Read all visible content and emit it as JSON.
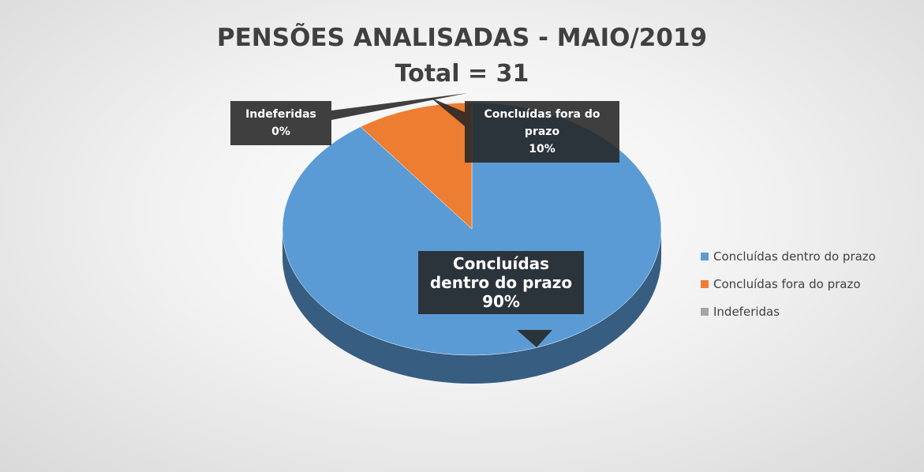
{
  "chart_data": {
    "type": "pie",
    "title": "PENSÕES ANALISADAS - MAIO/2019",
    "subtitle": "Total = 31",
    "categories": [
      "Concluídas dentro do prazo",
      "Concluídas  fora do prazo",
      "Indeferidas"
    ],
    "values": [
      90,
      10,
      0
    ],
    "value_labels": [
      "90%",
      "10%",
      "0%"
    ],
    "colors": [
      "#5b9bd5",
      "#ed7d31",
      "#a5a5a5"
    ],
    "legend": "right"
  }
}
